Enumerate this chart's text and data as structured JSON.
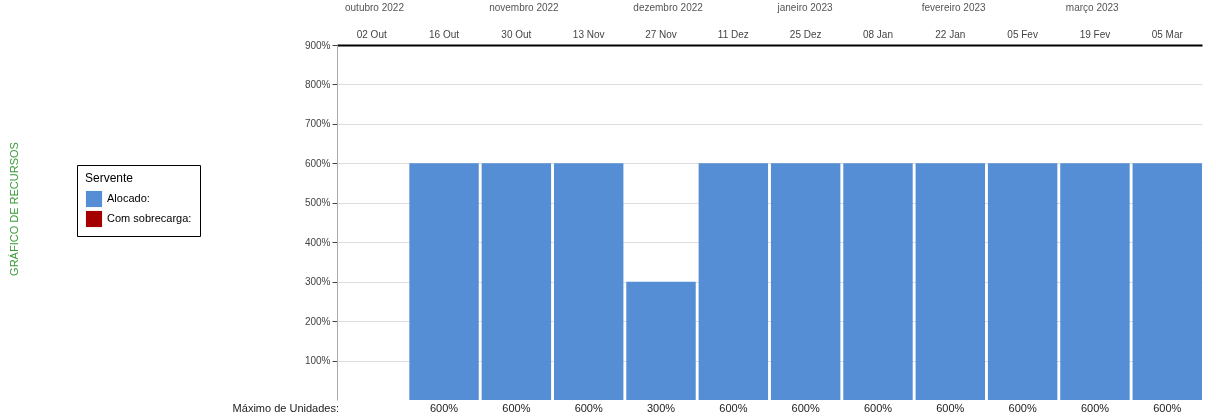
{
  "chart_data": {
    "type": "bar",
    "legend_title": "Servente",
    "legend": "left",
    "grid": "y",
    "categories": [
      "02 Out",
      "16 Out",
      "30 Out",
      "13 Nov",
      "27 Nov",
      "11 Dez",
      "25 Dez",
      "08 Jan",
      "22 Jan",
      "05 Fev",
      "19 Fev",
      "05 Mar"
    ],
    "series": [
      {
        "name": "Alocado:",
        "color": "#558ed5",
        "values": [
          null,
          600,
          600,
          600,
          300,
          600,
          600,
          600,
          600,
          600,
          600,
          600
        ],
        "value_labels": [
          null,
          "600%",
          "600%",
          "600%",
          "300%",
          "600%",
          "600%",
          "600%",
          "600%",
          "600%",
          "600%",
          "600%"
        ]
      },
      {
        "name": "Com sobrecarga:",
        "color": "#a50000",
        "values": [
          null,
          null,
          null,
          null,
          null,
          null,
          null,
          null,
          null,
          null,
          null,
          null
        ]
      }
    ],
    "ylim": [
      0,
      900
    ],
    "yticks": [
      {
        "value": 100,
        "label": "100%"
      },
      {
        "value": 200,
        "label": "200%"
      },
      {
        "value": 300,
        "label": "300%"
      },
      {
        "value": 400,
        "label": "400%"
      },
      {
        "value": 500,
        "label": "500%"
      },
      {
        "value": 600,
        "label": "600%"
      },
      {
        "value": 700,
        "label": "700%"
      },
      {
        "value": 800,
        "label": "800%"
      },
      {
        "value": 900,
        "label": "900%"
      }
    ],
    "annotations": [
      "GRÁFICO DE RECURSOS",
      "outubro 2022",
      "novembro 2022",
      "dezembro 2022",
      "janeiro 2023",
      "fevereiro 2023",
      "março 2023",
      "Máximo de Unidades:"
    ]
  }
}
